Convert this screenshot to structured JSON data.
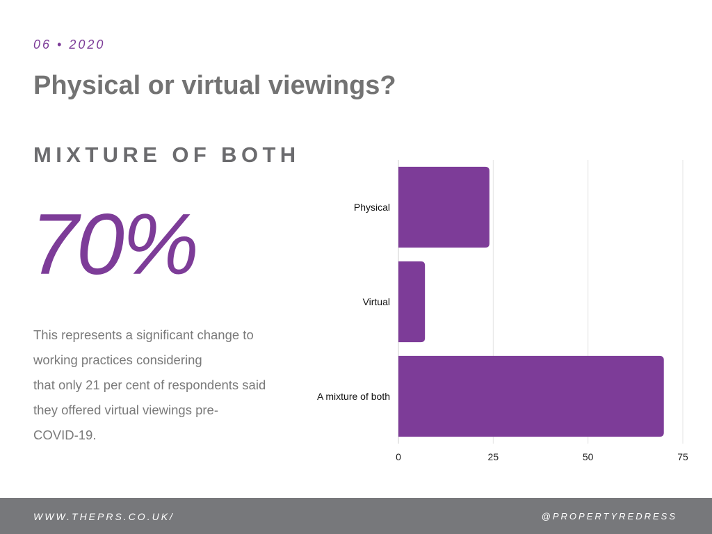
{
  "header": {
    "date": "06 • 2020",
    "title": "Physical or virtual viewings?"
  },
  "highlight": {
    "kicker": "MIXTURE OF BOTH",
    "stat": "70%",
    "description_lines": [
      "This represents a significant change to",
      "working practices considering",
      "that only 21 per cent of respondents said",
      "they offered virtual viewings pre-",
      "COVID-19."
    ]
  },
  "chart_data": {
    "type": "bar",
    "orientation": "horizontal",
    "categories": [
      "Physical",
      "Virtual",
      "A mixture of both"
    ],
    "values": [
      24,
      7,
      70
    ],
    "xlim": [
      0,
      75
    ],
    "xticks": [
      0,
      25,
      50,
      75
    ],
    "grid": true,
    "bar_color": "#7d3c98"
  },
  "footer": {
    "website": "WWW.THEPRS.CO.UK/",
    "handle": "@PROPERTYREDRESS"
  },
  "colors": {
    "accent": "#7d3c98",
    "heading": "#737373",
    "footer_bg": "#77787b"
  }
}
